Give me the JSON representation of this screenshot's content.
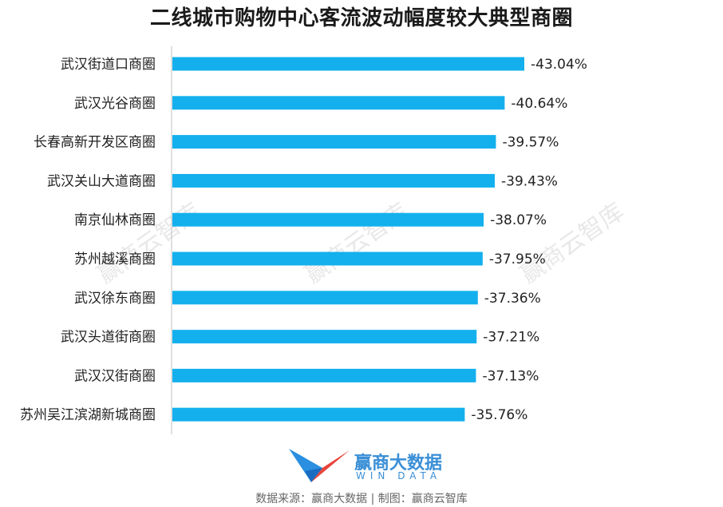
{
  "title": "二线城市购物中心客流波动幅度较大典型商圈",
  "watermark": "赢商云智库",
  "logo": {
    "cn": "赢商大数据",
    "en": "WIN DATA"
  },
  "footer": "数据来源：赢商大数据 | 制图：赢商云智库",
  "colors": {
    "bar": "#14b0ee",
    "axis": "#bfbfbf",
    "label": "#222222"
  },
  "chart_data": {
    "type": "bar",
    "orientation": "horizontal",
    "categories": [
      "武汉街道口商圈",
      "武汉光谷商圈",
      "长春高新开发区商圈",
      "武汉关山大道商圈",
      "南京仙林商圈",
      "苏州越溪商圈",
      "武汉徐东商圈",
      "武汉头道街商圈",
      "武汉汉街商圈",
      "苏州吴江滨湖新城商圈"
    ],
    "values": [
      -43.04,
      -40.64,
      -39.57,
      -39.43,
      -38.07,
      -37.95,
      -37.36,
      -37.21,
      -37.13,
      -35.76
    ],
    "value_labels": [
      "-43.04%",
      "-40.64%",
      "-39.57%",
      "-39.43%",
      "-38.07%",
      "-37.95%",
      "-37.36%",
      "-37.21%",
      "-37.13%",
      "-35.76%"
    ],
    "unit": "%",
    "grid": false,
    "legend": "none"
  }
}
